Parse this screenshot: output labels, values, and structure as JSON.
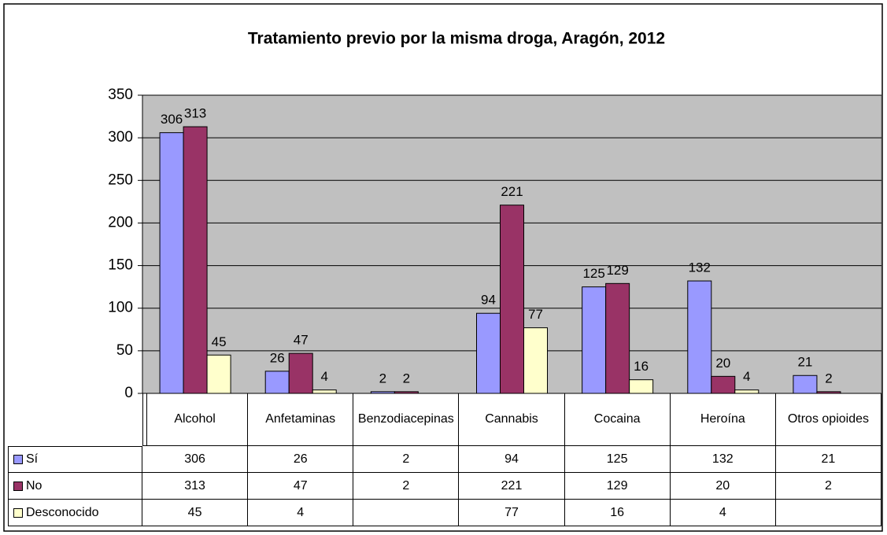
{
  "chart_data": {
    "type": "bar",
    "title": "Tratamiento previo por la misma droga, Aragón, 2012",
    "categories": [
      "Alcohol",
      "Anfetaminas",
      "Benzodiacepinas",
      "Cannabis",
      "Cocaina",
      "Heroína",
      "Otros opioides"
    ],
    "series": [
      {
        "name": "Sí",
        "color": "#9999ff",
        "values": [
          306,
          26,
          2,
          94,
          125,
          132,
          21
        ]
      },
      {
        "name": "No",
        "color": "#993366",
        "values": [
          313,
          47,
          2,
          221,
          129,
          20,
          2
        ]
      },
      {
        "name": "Desconocido",
        "color": "#ffffcc",
        "values": [
          45,
          4,
          null,
          77,
          16,
          4,
          null
        ]
      }
    ],
    "ylim": [
      0,
      350
    ],
    "yticks": [
      0,
      50,
      100,
      150,
      200,
      250,
      300,
      350
    ],
    "grid": true
  }
}
